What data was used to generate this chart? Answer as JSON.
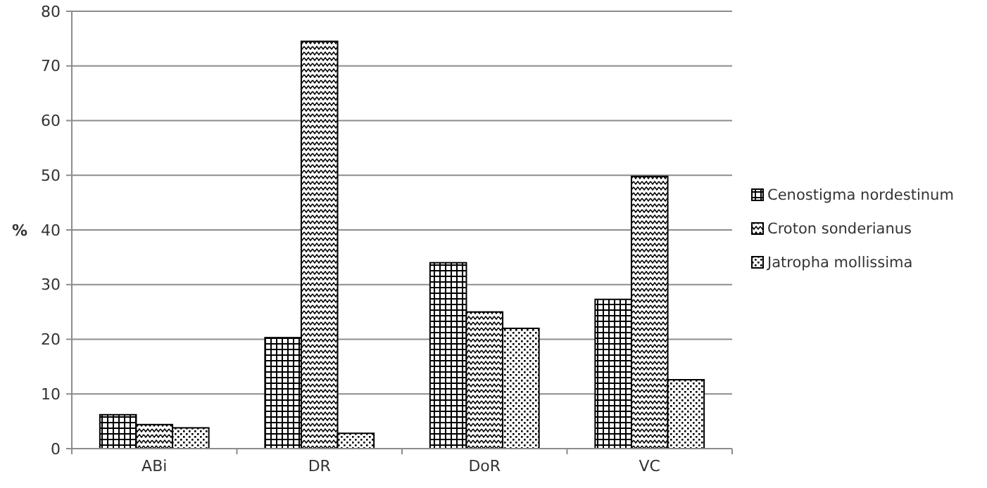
{
  "chart_data": {
    "type": "bar",
    "ylabel": "%",
    "categories": [
      "ABi",
      "DR",
      "DoR",
      "VC"
    ],
    "series": [
      {
        "name": "Cenostigma nordestinum",
        "color": "#000000",
        "values": [
          6.2,
          20.3,
          34,
          27.3
        ]
      },
      {
        "name": "Croton sonderianus",
        "color": "#000000",
        "values": [
          4.4,
          74.5,
          25,
          49.8
        ]
      },
      {
        "name": "Jatropha mollissima",
        "color": "#000000",
        "values": [
          3.8,
          2.8,
          22,
          12.6
        ]
      }
    ],
    "ylim": [
      0,
      80
    ],
    "yticks": [
      0,
      10,
      20,
      30,
      40,
      50,
      60,
      70,
      80
    ],
    "grid": "y",
    "legend": "right"
  }
}
